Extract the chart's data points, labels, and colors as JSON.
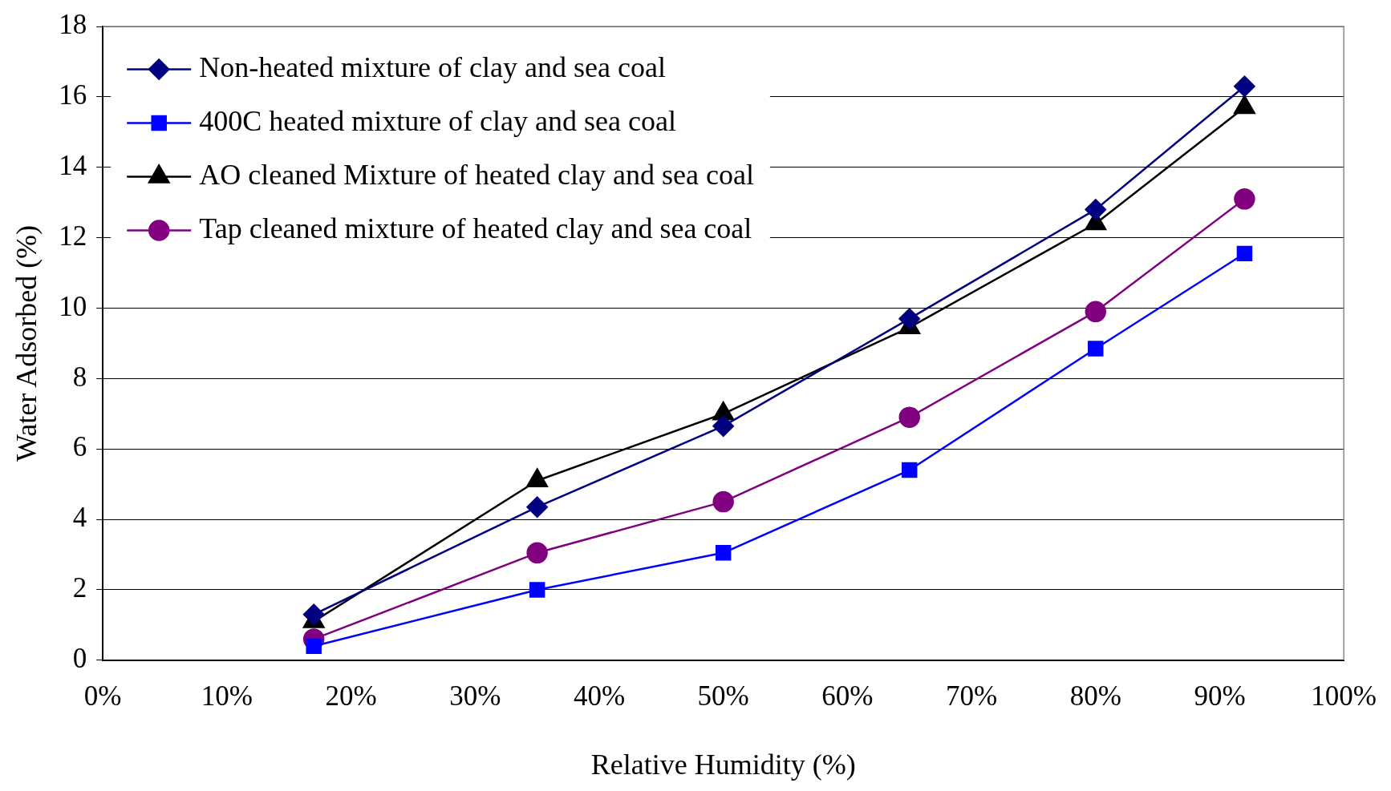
{
  "chart_data": {
    "type": "line",
    "xlabel": "Relative Humidity (%)",
    "ylabel": "Water Adsorbed (%)",
    "x": [
      17,
      35,
      50,
      65,
      80,
      92
    ],
    "series": [
      {
        "name": "Non-heated mixture of clay and sea coal",
        "color": "#000080",
        "marker": "diamond",
        "values": [
          1.3,
          4.35,
          6.65,
          9.7,
          12.8,
          16.3
        ]
      },
      {
        "name": "400C heated mixture of clay and sea coal",
        "color": "#0000ff",
        "marker": "square",
        "values": [
          0.4,
          2.0,
          3.05,
          5.4,
          8.85,
          11.55
        ]
      },
      {
        "name": "AO cleaned Mixture of heated clay and sea coal",
        "color": "#000000",
        "marker": "triangle",
        "values": [
          1.1,
          5.1,
          7.0,
          9.45,
          12.4,
          15.7
        ]
      },
      {
        "name": "Tap cleaned mixture of heated clay and sea coal",
        "color": "#800080",
        "marker": "circle",
        "values": [
          0.6,
          3.05,
          4.5,
          6.9,
          9.9,
          13.1
        ]
      }
    ],
    "xlim": [
      0,
      100
    ],
    "xticks": [
      {
        "value": 0,
        "label": "0%"
      },
      {
        "value": 10,
        "label": "10%"
      },
      {
        "value": 20,
        "label": "20%"
      },
      {
        "value": 30,
        "label": "30%"
      },
      {
        "value": 40,
        "label": "40%"
      },
      {
        "value": 50,
        "label": "50%"
      },
      {
        "value": 60,
        "label": "60%"
      },
      {
        "value": 70,
        "label": "70%"
      },
      {
        "value": 80,
        "label": "80%"
      },
      {
        "value": 90,
        "label": "90%"
      },
      {
        "value": 100,
        "label": "100%"
      }
    ],
    "ylim": [
      0,
      18
    ],
    "yticks": [
      0,
      2,
      4,
      6,
      8,
      10,
      12,
      14,
      16,
      18
    ],
    "grid": "y",
    "legend": "top left",
    "line_style": "solid"
  }
}
